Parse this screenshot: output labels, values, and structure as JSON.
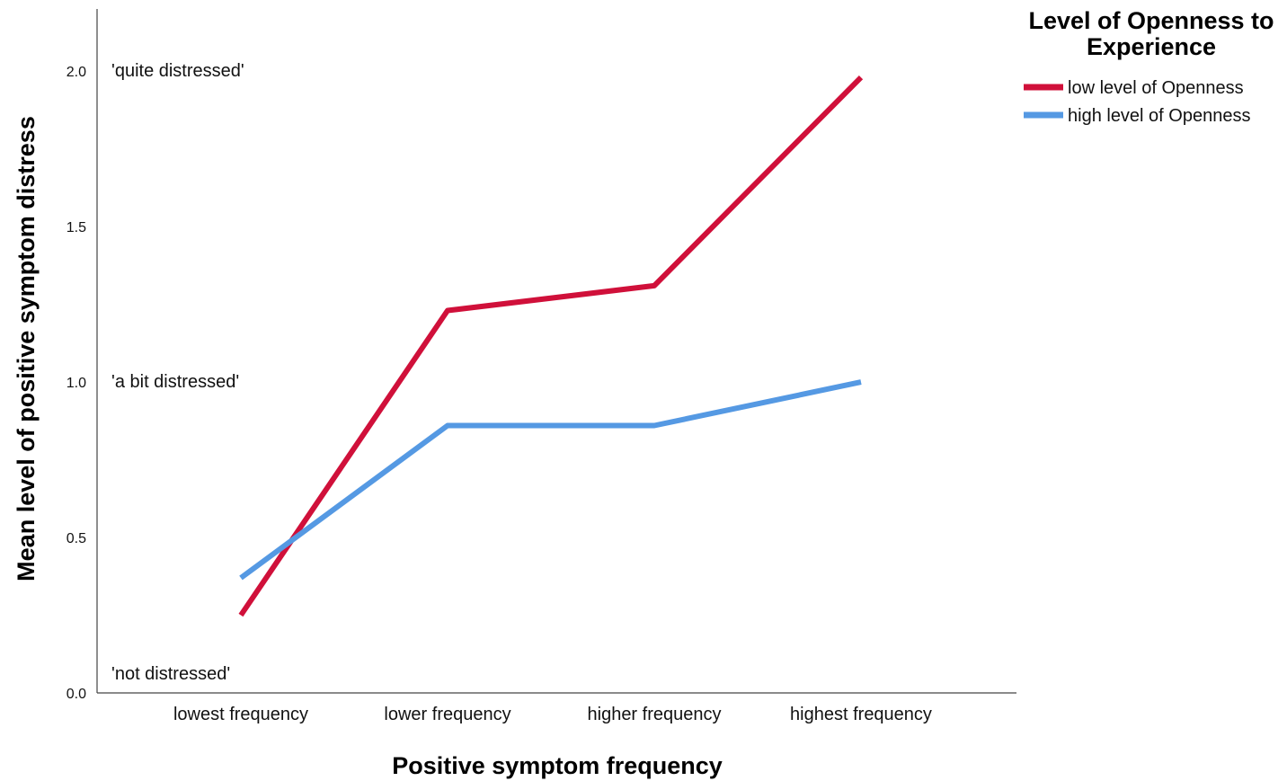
{
  "chart_data": {
    "type": "line",
    "categories": [
      "lowest frequency",
      "lower frequency",
      "higher frequency",
      "highest frequency"
    ],
    "series": [
      {
        "name": "low level of Openness",
        "color": "#d0103a",
        "values": [
          0.25,
          1.23,
          1.31,
          1.98
        ]
      },
      {
        "name": "high level of Openness",
        "color": "#5599e3",
        "values": [
          0.37,
          0.86,
          0.86,
          1.0
        ]
      }
    ],
    "xlabel": "Positive symptom frequency",
    "ylabel": "Mean level of positive symptom distress",
    "ylim": [
      0,
      2.2
    ],
    "yticks": [
      "0.0",
      "0.5",
      "1.0",
      "1.5",
      "2.0"
    ],
    "legend": {
      "title_lines": [
        "Level of Openness to",
        "Experience"
      ],
      "placement": "top-right"
    },
    "annotations": [
      {
        "text": "'quite distressed'",
        "y": 2.0
      },
      {
        "text": "'a bit distressed'",
        "y": 1.0
      },
      {
        "text": "'not distressed'",
        "y": 0.06
      }
    ],
    "grid": false
  }
}
